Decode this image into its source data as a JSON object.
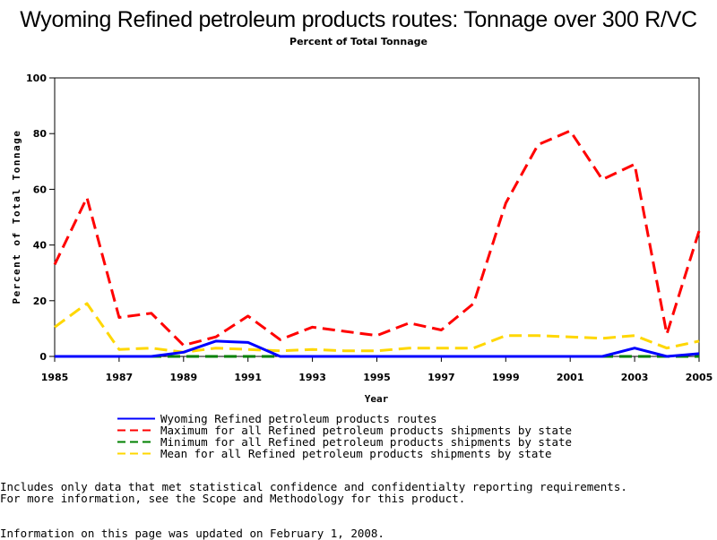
{
  "title": "Wyoming Refined petroleum products routes: Tonnage over 300 R/VC",
  "subtitle": "Percent of Total Tonnage",
  "footnotes": {
    "line1": "Includes only data that met statistical confidence and confidentialty reporting requirements.",
    "line2": "For more information, see the Scope and Methodology for this product.",
    "updated": "Information on this page was updated on February 1, 2008."
  },
  "chart_data": {
    "type": "line",
    "xlabel": "Year",
    "ylabel": "Percent of Total Tonnage",
    "xlim": [
      1985,
      2005
    ],
    "ylim": [
      0,
      100
    ],
    "xticks": [
      "1985",
      "1987",
      "1989",
      "1991",
      "1993",
      "1995",
      "1997",
      "1999",
      "2001",
      "2003",
      "2005"
    ],
    "yticks": [
      "0",
      "20",
      "40",
      "60",
      "80",
      "100"
    ],
    "grid": false,
    "legend_position": "bottom",
    "x": [
      1985,
      1986,
      1987,
      1988,
      1989,
      1990,
      1991,
      1992,
      1993,
      1994,
      1995,
      1996,
      1997,
      1998,
      1999,
      2000,
      2001,
      2002,
      2003,
      2004,
      2005
    ],
    "series": [
      {
        "name": "Wyoming Refined petroleum products routes",
        "color": "#0000ff",
        "dash": "solid",
        "values": [
          0,
          0,
          0,
          0,
          1.5,
          5.5,
          5,
          0,
          0,
          0,
          0,
          0,
          0,
          0,
          0,
          0,
          0,
          0,
          3,
          0,
          1
        ]
      },
      {
        "name": "Maximum for all Refined petroleum products shipments by state",
        "color": "#ff0000",
        "dash": "dashed",
        "values": [
          33,
          57,
          14,
          15.5,
          4,
          7,
          14.5,
          6,
          10.5,
          9,
          7.5,
          12,
          9.5,
          19,
          55,
          76,
          81,
          63.5,
          69,
          8,
          45
        ]
      },
      {
        "name": "Minimum for all Refined petroleum products shipments by state",
        "color": "#008000",
        "dash": "dashed",
        "values": [
          0,
          0,
          0,
          0,
          0,
          0,
          0,
          0,
          0,
          0,
          0,
          0,
          0,
          0,
          0,
          0,
          0,
          0,
          0,
          0,
          0
        ]
      },
      {
        "name": "Mean for all Refined petroleum products shipments by state",
        "color": "#ffd700",
        "dash": "dashed",
        "values": [
          10.5,
          19,
          2.5,
          3,
          1.5,
          3,
          2.5,
          2,
          2.5,
          2,
          2,
          3,
          3,
          3,
          7.5,
          7.5,
          7,
          6.5,
          7.5,
          3,
          5.5
        ]
      }
    ]
  }
}
